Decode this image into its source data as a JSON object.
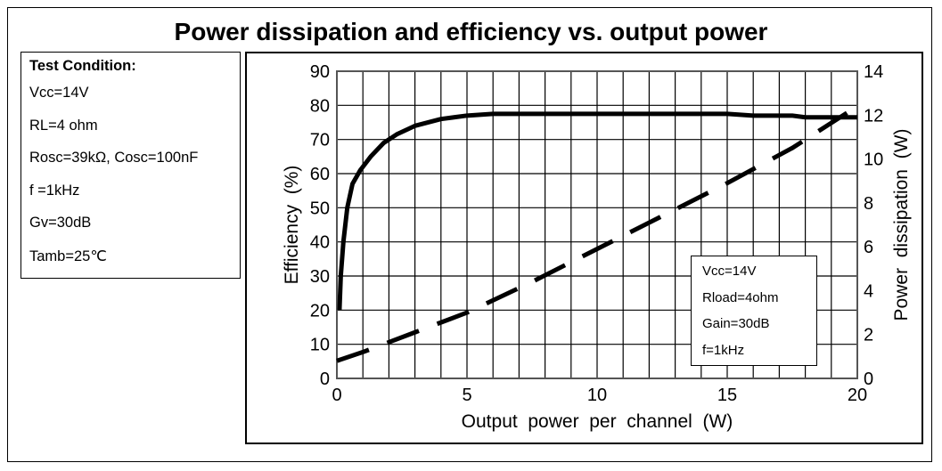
{
  "title": "Power dissipation and efficiency vs. output power",
  "test_condition": {
    "heading": "Test Condition:",
    "lines": [
      "Vcc=14V",
      "RL=4 ohm",
      "Rosc=39kΩ, Cosc=100nF",
      "f =1kHz",
      "Gv=30dB",
      "Tamb=25℃"
    ]
  },
  "legend": [
    "Vcc=14V",
    "Rload=4ohm",
    "Gain=30dB",
    "f=1kHz"
  ],
  "chart_data": {
    "type": "line",
    "title": "Power dissipation and efficiency vs. output power",
    "xlabel": "Output  power  per  channel  (W)",
    "ylabel": "Efficiency  (%)",
    "y2label": "Power  dissipation  (W)",
    "xlim": [
      0,
      20
    ],
    "ylim": [
      0,
      90
    ],
    "y2lim": [
      0,
      14
    ],
    "xticks": [
      0,
      5,
      10,
      15,
      20
    ],
    "yticks": [
      0,
      10,
      20,
      30,
      40,
      50,
      60,
      70,
      80,
      90
    ],
    "y2ticks": [
      0,
      2,
      4,
      6,
      8,
      10,
      12,
      14
    ],
    "grid": true,
    "series": [
      {
        "name": "Efficiency",
        "axis": "left",
        "style": "solid",
        "x": [
          0.1,
          0.15,
          0.25,
          0.4,
          0.6,
          0.9,
          1.3,
          1.8,
          2.3,
          3,
          4,
          5,
          6,
          10,
          15,
          16,
          17.5,
          18,
          20
        ],
        "y": [
          20,
          30,
          40,
          50,
          57,
          61,
          65,
          69,
          71.5,
          74,
          76,
          77,
          77.5,
          77.5,
          77.5,
          77,
          77,
          76.5,
          76.5
        ]
      },
      {
        "name": "Power dissipation",
        "axis": "right",
        "style": "dashed",
        "x": [
          0,
          1,
          3,
          5,
          7.5,
          10,
          12.5,
          15,
          17.5,
          19.6
        ],
        "y": [
          0.8,
          1.2,
          2.1,
          3.0,
          4.4,
          5.9,
          7.4,
          8.9,
          10.5,
          12.1
        ]
      }
    ]
  }
}
